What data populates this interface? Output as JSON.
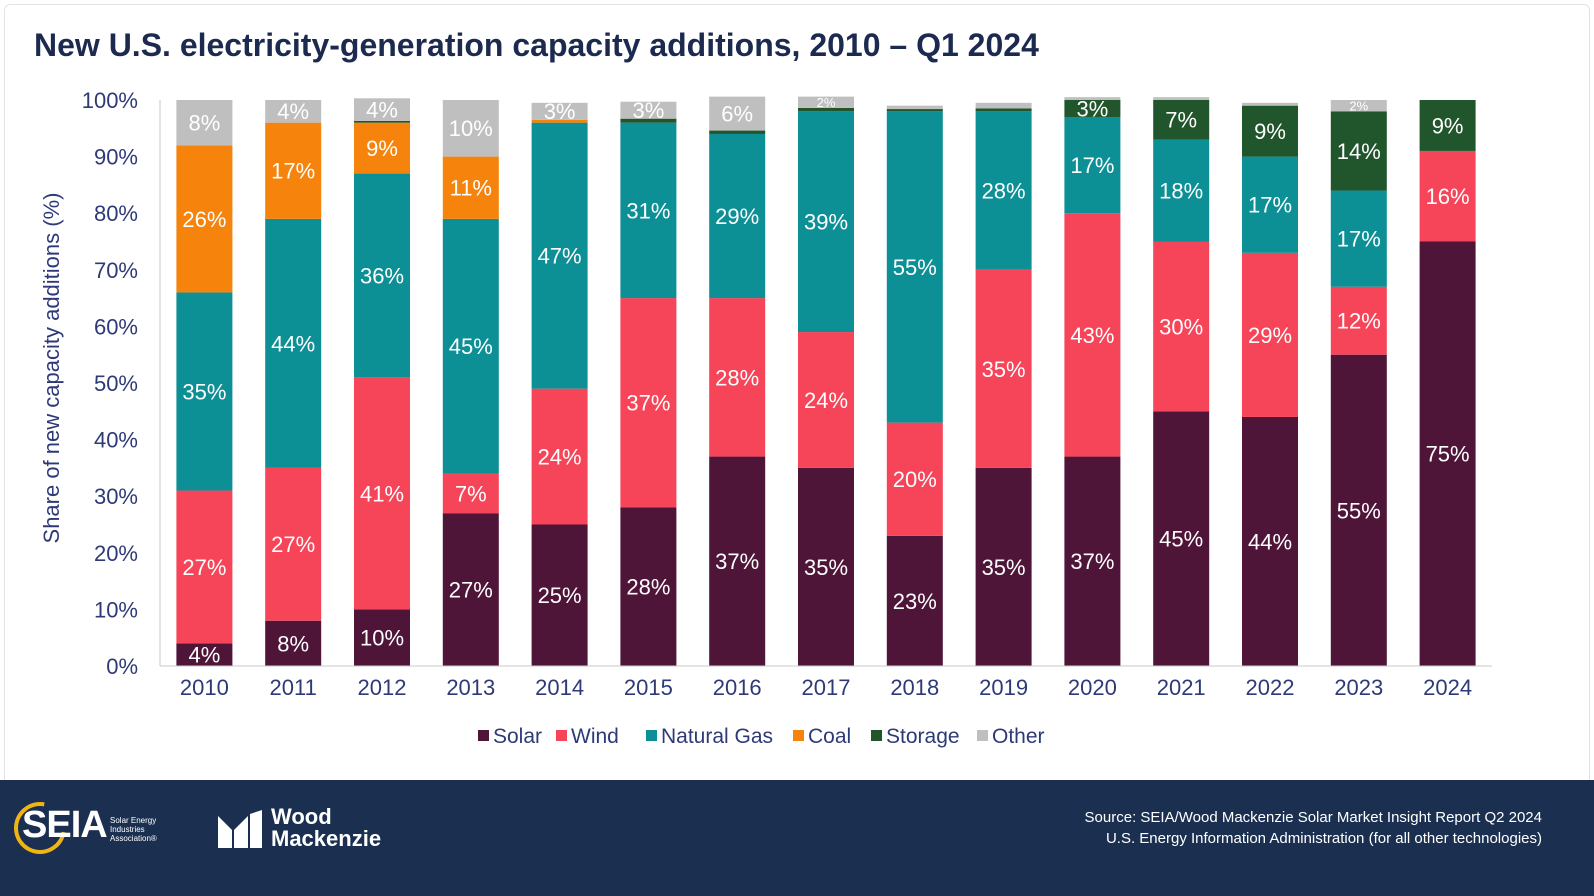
{
  "title": "New U.S. electricity-generation capacity additions, 2010 – Q1 2024",
  "chart_data": {
    "type": "bar",
    "stacked": true,
    "title": "New U.S. electricity-generation capacity additions, 2010 – Q1 2024",
    "ylabel": "Share of new capacity additions (%)",
    "xlabel": "",
    "ylim": [
      0,
      100
    ],
    "y_ticks": [
      "0%",
      "10%",
      "20%",
      "30%",
      "40%",
      "50%",
      "60%",
      "70%",
      "80%",
      "90%",
      "100%"
    ],
    "categories": [
      "2010",
      "2011",
      "2012",
      "2013",
      "2014",
      "2015",
      "2016",
      "2017",
      "2018",
      "2019",
      "2020",
      "2021",
      "2022",
      "2023",
      "2024"
    ],
    "legend_position": "bottom",
    "grid": false,
    "series": [
      {
        "name": "Solar",
        "color": "#4f1538",
        "values": [
          4,
          8,
          10,
          27,
          25,
          28,
          37,
          35,
          23,
          35,
          37,
          45,
          44,
          55,
          75
        ],
        "labels": [
          "4%",
          "8%",
          "10%",
          "27%",
          "25%",
          "28%",
          "37%",
          "35%",
          "23%",
          "35%",
          "37%",
          "45%",
          "44%",
          "55%",
          "75%"
        ]
      },
      {
        "name": "Wind",
        "color": "#f64458",
        "values": [
          27,
          27,
          41,
          7,
          24,
          37,
          28,
          24,
          20,
          35,
          43,
          30,
          29,
          12,
          16
        ],
        "labels": [
          "27%",
          "27%",
          "41%",
          "7%",
          "24%",
          "37%",
          "28%",
          "24%",
          "20%",
          "35%",
          "43%",
          "30%",
          "29%",
          "12%",
          "16%"
        ]
      },
      {
        "name": "Natural Gas",
        "color": "#0d8f96",
        "values": [
          35,
          44,
          36,
          45,
          47,
          31,
          29,
          39,
          55,
          28,
          17,
          18,
          17,
          17,
          0
        ],
        "labels": [
          "35%",
          "44%",
          "36%",
          "45%",
          "47%",
          "31%",
          "29%",
          "39%",
          "55%",
          "28%",
          "17%",
          "18%",
          "17%",
          "17%",
          ""
        ]
      },
      {
        "name": "Coal",
        "color": "#f5830c",
        "values": [
          26,
          17,
          9,
          11,
          0.5,
          0,
          0,
          0,
          0,
          0,
          0,
          0,
          0,
          0,
          0
        ],
        "labels": [
          "26%",
          "17%",
          "9%",
          "11%",
          "",
          "",
          "",
          "",
          "",
          "",
          "",
          "",
          "",
          "",
          ""
        ]
      },
      {
        "name": "Storage",
        "color": "#21552b",
        "values": [
          0,
          0,
          0.3,
          0,
          0,
          0.7,
          0.6,
          0.6,
          0.4,
          0.5,
          3,
          7,
          9,
          14,
          9
        ],
        "labels": [
          "",
          "",
          "",
          "",
          "",
          "",
          "",
          "",
          "",
          "",
          "3%",
          "7%",
          "9%",
          "14%",
          "9%"
        ]
      },
      {
        "name": "Other",
        "color": "#bfbfbf",
        "values": [
          8,
          4,
          4,
          10,
          3,
          3,
          6,
          2,
          0.6,
          1,
          0.5,
          0.5,
          0.5,
          2,
          0
        ],
        "labels": [
          "8%",
          "4%",
          "4%",
          "10%",
          "3%",
          "3%",
          "6%",
          "2%",
          "",
          "",
          "",
          "",
          "",
          "2%",
          ""
        ]
      }
    ]
  },
  "footer": {
    "seia_word": "SEIA",
    "seia_sub": "Solar Energy Industries Association®",
    "wm_line1": "Wood",
    "wm_line2": "Mackenzie",
    "source_line1": "Source: SEIA/Wood Mackenzie Solar Market Insight Report  Q2 2024",
    "source_line2": "U.S. Energy Information Administration (for all other technologies)"
  },
  "colors": {
    "title": "#1b2a4e",
    "axis_text": "#2e3a78",
    "footer_bg": "#1b3050",
    "seia_ring": "#f2b413"
  }
}
